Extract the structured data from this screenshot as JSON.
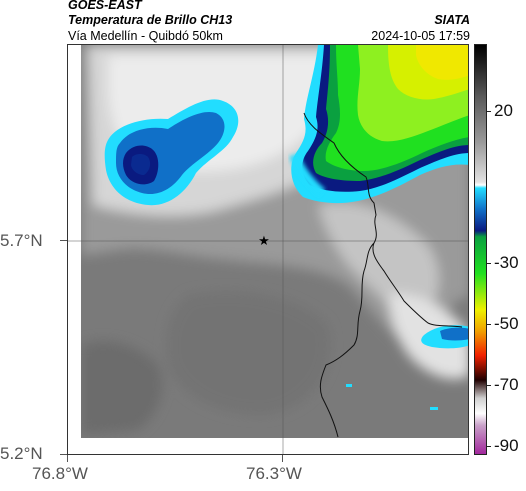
{
  "header": {
    "satellite": "GOES-EAST",
    "product": "Temperatura de Brillo CH13",
    "route": "Vía Medellín - Quibdó 50km",
    "source": "SIATA",
    "timestamp": "2024-10-05 17:59"
  },
  "map": {
    "marker_icon": "star-icon",
    "lat_ticks": [
      "5.7°N",
      "5.2°N"
    ],
    "lon_ticks": [
      "76.8°W",
      "76.3°W"
    ]
  },
  "colorbar": {
    "labels": [
      "20",
      "-30",
      "-50",
      "-70",
      "-90"
    ],
    "values": [
      20,
      -30,
      -50,
      -70,
      -90
    ],
    "range": [
      -93,
      42
    ],
    "stops": [
      {
        "value": 42,
        "color": "#000000"
      },
      {
        "value": 25,
        "color": "#5a5a5a"
      },
      {
        "value": 10,
        "color": "#9a9a9a"
      },
      {
        "value": -3,
        "color": "#e2e2e2"
      },
      {
        "value": -4,
        "color": "#ffffff"
      },
      {
        "value": -5,
        "color": "#22ddff"
      },
      {
        "value": -12,
        "color": "#1070c8"
      },
      {
        "value": -19,
        "color": "#0a1a80"
      },
      {
        "value": -21,
        "color": "#0aa040"
      },
      {
        "value": -33,
        "color": "#20e020"
      },
      {
        "value": -45,
        "color": "#eef000"
      },
      {
        "value": -52,
        "color": "#f0a000"
      },
      {
        "value": -60,
        "color": "#f02000"
      },
      {
        "value": -68,
        "color": "#200000"
      },
      {
        "value": -74,
        "color": "#d0d0d0"
      },
      {
        "value": -79,
        "color": "#ffffff"
      },
      {
        "value": -83,
        "color": "#c8a0c8"
      },
      {
        "value": -93,
        "color": "#a0209a"
      }
    ]
  },
  "colors": {
    "cloud_gray": "#7a7a7a",
    "cloud_light": "#e6e6e6",
    "cold_cyan": "#22ddff",
    "cold_blue": "#1070c8",
    "deep_blue": "#0a1a80",
    "green": "#20e020",
    "yellow": "#eef000"
  }
}
